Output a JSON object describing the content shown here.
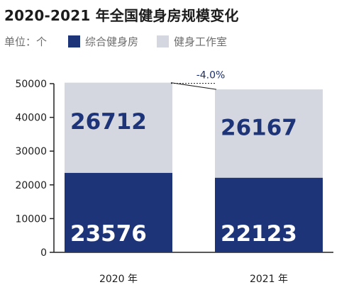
{
  "title": "2020-2021 年全国健身房规模变化",
  "unit_label": "单位：个",
  "colors": {
    "primary": "#1e3478",
    "secondary": "#d4d7df",
    "axis": "#222222",
    "text_dark": "#1c1c1c",
    "text_light": "#ffffff",
    "connector": "#1c1c1c"
  },
  "chart_data": {
    "type": "bar",
    "stacked": true,
    "title": "2020-2021 年全国健身房规模变化",
    "xlabel": "",
    "ylabel": "",
    "ylim": [
      0,
      50000
    ],
    "yticks": [
      "0",
      "10000",
      "20000",
      "30000",
      "40000",
      "50000"
    ],
    "categories": [
      "2020 年",
      "2021 年"
    ],
    "series": [
      {
        "name": "综合健身房",
        "values": [
          23576,
          22123
        ]
      },
      {
        "name": "健身工作室",
        "values": [
          26712,
          26167
        ]
      }
    ],
    "annotations": [
      {
        "text": "-4.0%"
      }
    ],
    "grid": false,
    "legend": "top-left"
  }
}
